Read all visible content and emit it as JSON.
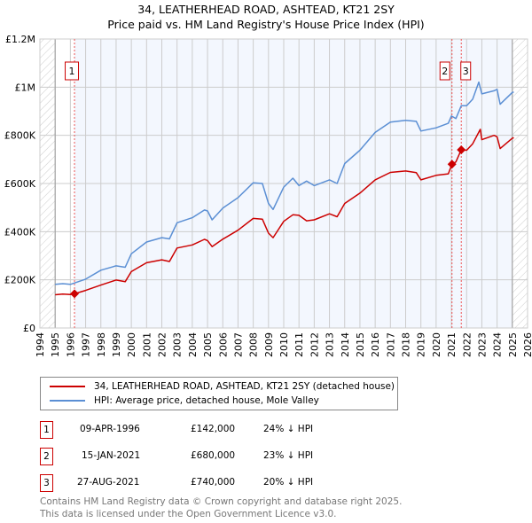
{
  "chart_data": {
    "type": "line",
    "title": "34, LEATHERHEAD ROAD, ASHTEAD, KT21 2SY",
    "subtitle": "Price paid vs. HM Land Registry's House Price Index (HPI)",
    "xlim": [
      1994,
      2026
    ],
    "ylim": [
      0,
      1200000
    ],
    "x_ticks": [
      "1994",
      "1995",
      "1996",
      "1997",
      "1998",
      "1999",
      "2000",
      "2001",
      "2002",
      "2003",
      "2004",
      "2005",
      "2006",
      "2007",
      "2008",
      "2009",
      "2010",
      "2011",
      "2012",
      "2013",
      "2014",
      "2015",
      "2016",
      "2017",
      "2018",
      "2019",
      "2020",
      "2021",
      "2022",
      "2023",
      "2024",
      "2025",
      "2026"
    ],
    "y_ticks": [
      {
        "v": 0,
        "label": "£0"
      },
      {
        "v": 200000,
        "label": "£200K"
      },
      {
        "v": 400000,
        "label": "£400K"
      },
      {
        "v": 600000,
        "label": "£600K"
      },
      {
        "v": 800000,
        "label": "£800K"
      },
      {
        "v": 1000000,
        "label": "£1M"
      },
      {
        "v": 1200000,
        "label": "£1.2M"
      }
    ],
    "grid": true,
    "data_range": [
      1995,
      2025.1
    ],
    "series": [
      {
        "name": "34, LEATHERHEAD ROAD, ASHTEAD, KT21 2SY (detached house)",
        "color": "#cc0000",
        "x": [
          1995,
          1995.5,
          1996,
          1996.27,
          1997,
          1998,
          1999,
          1999.6,
          2000,
          2001,
          2002,
          2002.5,
          2003,
          2004,
          2004.8,
          2005,
          2005.3,
          2006,
          2007,
          2008,
          2008.6,
          2009,
          2009.3,
          2010,
          2010.6,
          2011,
          2011.5,
          2012,
          2013,
          2013.5,
          2014,
          2015,
          2016,
          2017,
          2018,
          2018.7,
          2019,
          2020,
          2020.8,
          2021.04,
          2021.3,
          2021.65,
          2022,
          2022.4,
          2022.9,
          2023,
          2023.8,
          2024,
          2024.2,
          2025,
          2025.1
        ],
        "y": [
          138000,
          141000,
          139000,
          142000,
          156000,
          178000,
          199000,
          192000,
          234000,
          271000,
          283000,
          276000,
          332000,
          345000,
          368000,
          363000,
          338000,
          369000,
          406000,
          455000,
          452000,
          394000,
          375000,
          443000,
          470000,
          468000,
          445000,
          449000,
          474000,
          462000,
          517000,
          560000,
          615000,
          646000,
          652000,
          645000,
          615000,
          634000,
          640000,
          680000,
          690000,
          740000,
          738000,
          765000,
          825000,
          782000,
          800000,
          794000,
          745000,
          788000,
          790000
        ]
      },
      {
        "name": "HPI: Average price, detached house, Mole Valley",
        "color": "#5b8fd4",
        "x": [
          1995,
          1995.5,
          1996,
          1997,
          1998,
          1999,
          1999.6,
          2000,
          2001,
          2002,
          2002.5,
          2003,
          2004,
          2004.8,
          2005,
          2005.3,
          2006,
          2007,
          2008,
          2008.6,
          2009,
          2009.3,
          2010,
          2010.6,
          2011,
          2011.5,
          2012,
          2013,
          2013.5,
          2014,
          2015,
          2016,
          2017,
          2018,
          2018.7,
          2019,
          2020,
          2020.8,
          2021,
          2021.3,
          2021.65,
          2022,
          2022.4,
          2022.8,
          2023,
          2023.8,
          2024,
          2024.2,
          2025,
          2025.1
        ],
        "y": [
          181000,
          184000,
          181000,
          203000,
          240000,
          258000,
          252000,
          308000,
          357000,
          375000,
          370000,
          437000,
          458000,
          490000,
          486000,
          449000,
          498000,
          541000,
          603000,
          600000,
          517000,
          492000,
          585000,
          622000,
          591000,
          610000,
          591000,
          615000,
          600000,
          683000,
          738000,
          812000,
          855000,
          862000,
          858000,
          818000,
          831000,
          850000,
          880000,
          870000,
          923000,
          923000,
          950000,
          1021000,
          972000,
          985000,
          991000,
          929000,
          978000,
          980000
        ]
      }
    ],
    "sales": [
      {
        "id": "1",
        "x": 1996.27,
        "y": 142000
      },
      {
        "id": "2",
        "x": 2021.04,
        "y": 680000
      },
      {
        "id": "3",
        "x": 2021.65,
        "y": 740000
      }
    ]
  },
  "legend": {
    "property": "34, LEATHERHEAD ROAD, ASHTEAD, KT21 2SY (detached house)",
    "hpi": "HPI: Average price, detached house, Mole Valley"
  },
  "transactions": [
    {
      "num": "1",
      "date": "09-APR-1996",
      "price": "£142,000",
      "hpi": "24% ↓ HPI"
    },
    {
      "num": "2",
      "date": "15-JAN-2021",
      "price": "£680,000",
      "hpi": "23% ↓ HPI"
    },
    {
      "num": "3",
      "date": "27-AUG-2021",
      "price": "£740,000",
      "hpi": "20% ↓ HPI"
    }
  ],
  "footer": {
    "line1": "Contains HM Land Registry data © Crown copyright and database right 2025.",
    "line2": "This data is licensed under the Open Government Licence v3.0."
  }
}
